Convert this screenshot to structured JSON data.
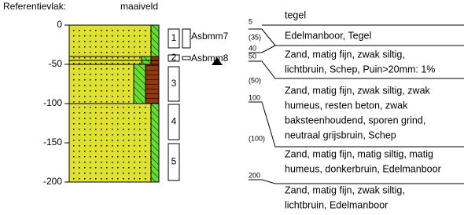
{
  "header": {
    "reference_label": "Referentievlak:",
    "reference_value": "maaiveld"
  },
  "depth_axis": {
    "ylim": [
      0,
      -200
    ],
    "yticks": [
      0,
      -50,
      -100,
      -150,
      -200
    ]
  },
  "strata": [
    {
      "top": 0,
      "bottom": -40
    },
    {
      "top": -40,
      "bottom": -45
    },
    {
      "top": -45,
      "bottom": -50
    },
    {
      "top": -50,
      "bottom": -100
    },
    {
      "top": -100,
      "bottom": -200
    }
  ],
  "samples": [
    {
      "label": "1",
      "top": -5,
      "bottom": -29
    },
    {
      "label": "2",
      "top": -38,
      "bottom": -46
    },
    {
      "label": "3",
      "top": -53,
      "bottom": -97
    },
    {
      "label": "4",
      "top": -101,
      "bottom": -146
    },
    {
      "label": "5",
      "top": -151,
      "bottom": -198
    }
  ],
  "asbestos_samples": [
    {
      "label": "Asbmm7",
      "top": -5,
      "bottom": -29
    },
    {
      "label": "Asbmm8",
      "top": -40,
      "bottom": -44
    }
  ],
  "groundwater_level": -46,
  "depth_labels": [
    "5",
    "(35)",
    "40",
    "50",
    "(50)",
    "100",
    "(100)",
    "200"
  ],
  "descriptions": [
    [
      "tegel"
    ],
    [
      "Edelmanboor,  Tegel"
    ],
    [
      "Zand, matig fijn, zwak siltig,",
      "lichtbruin,  Schep,  Puin>20mm:  1%"
    ],
    [
      "Zand, matig fijn, zwak siltig, zwak",
      "humeus, resten beton, zwak",
      "baksteenhoudend, sporen grind,",
      "neutraal grijsbruin,  Schep"
    ],
    [
      "Zand, matig fijn, matig siltig, matig",
      "humeus, donkerbruin,  Edelmanboor"
    ],
    [
      "Zand, matig fijn, zwak siltig,",
      "lichtbruin,  Edelmanboor"
    ]
  ]
}
